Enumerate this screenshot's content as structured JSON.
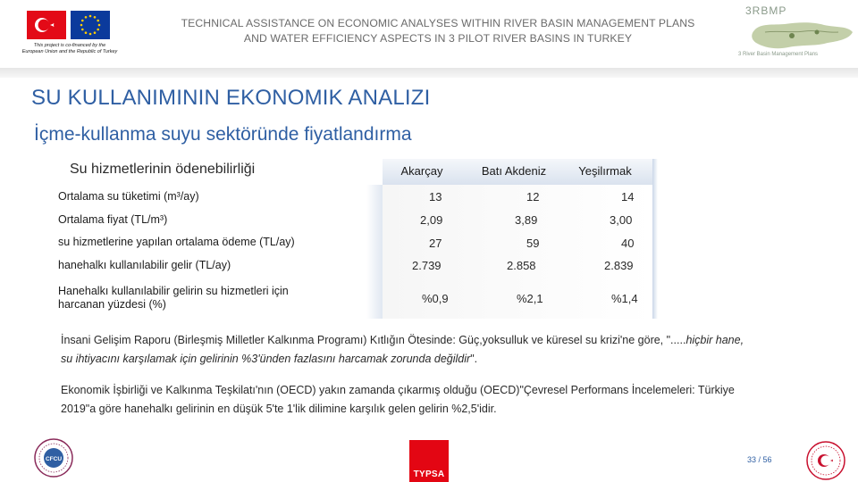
{
  "header": {
    "title_line1": "TECHNICAL ASSISTANCE ON ECONOMIC ANALYSES WITHIN RIVER BASIN MANAGEMENT PLANS",
    "title_line2": "AND WATER EFFICIENCY ASPECTS IN 3 PILOT RIVER BASINS IN TURKEY",
    "cofinance_line1": "This project is co-financed by the",
    "cofinance_line2": "European Union and the Republic of Turkey",
    "rbmp_logo_text": "3RBMP",
    "rbmp_subtitle": "3 River Basin Management Plans"
  },
  "slide": {
    "title": "SU KULLANIMININ EKONOMIK ANALIZI",
    "subtitle": "İçme-kullanma suyu sektöründe fiyatlandırma"
  },
  "table": {
    "label": "Su hizmetlerinin ödenebilirliği",
    "columns": [
      "Akarçay",
      "Batı Akdeniz",
      "Yeşilırmak"
    ],
    "rows": [
      {
        "label": "Ortalama su tüketimi (m³/ay)",
        "values": [
          "13",
          "12",
          "14"
        ]
      },
      {
        "label": "Ortalama fiyat (TL/m³)",
        "values": [
          "2,09",
          "3,89",
          "3,00"
        ]
      },
      {
        "label": "su hizmetlerine yapılan ortalama ödeme (TL/ay)",
        "values": [
          "27",
          "59",
          "40"
        ]
      },
      {
        "label": "hanehalkı kullanılabilir gelir (TL/ay)",
        "values": [
          "2.739",
          "2.858",
          "2.839"
        ]
      },
      {
        "label_line1": "Hanehalkı kullanılabilir gelirin su hizmetleri için",
        "label_line2": "harcanan yüzdesi (%)",
        "values": [
          "%0,9",
          "%2,1",
          "%1,4"
        ]
      }
    ]
  },
  "notes": {
    "note1_normal": "İnsani Gelişim Raporu (Birleşmiş Milletler Kalkınma Programı) Kıtlığın Ötesinde: Güç,yoksulluk ve küresel su krizi'ne göre, \".....",
    "note1_italic_a": "hiçbir hane,",
    "note1_italic_b": "su ihtiyacını karşılamak için gelirinin %3'ünden fazlasını harcamak zorunda değildir",
    "note1_end": "\".",
    "note2_line1": "Ekonomik İşbirliği ve Kalkınma Teşkilatı'nın (OECD) yakın zamanda çıkarmış olduğu (OECD)\"Çevresel Performans İncelemeleri: Türkiye",
    "note2_line2": "2019\"a göre hanehalkı gelirinin en düşük 5'te 1'lik dilimine karşılık gelen gelirin %2,5'idir."
  },
  "footer": {
    "typsa": "TYPSA",
    "page": "33 / 56",
    "cfcu": "CFCU"
  },
  "colors": {
    "accent_blue": "#2f5fa3",
    "turkey_red": "#e30a17",
    "eu_blue": "#0b3a9c",
    "typsa_red": "#e30613"
  },
  "icons": [
    "turkey-flag-icon",
    "eu-flag-icon",
    "rbmp-map-logo-icon",
    "cfcu-seal-icon",
    "typsa-logo-icon",
    "ministry-seal-icon"
  ]
}
